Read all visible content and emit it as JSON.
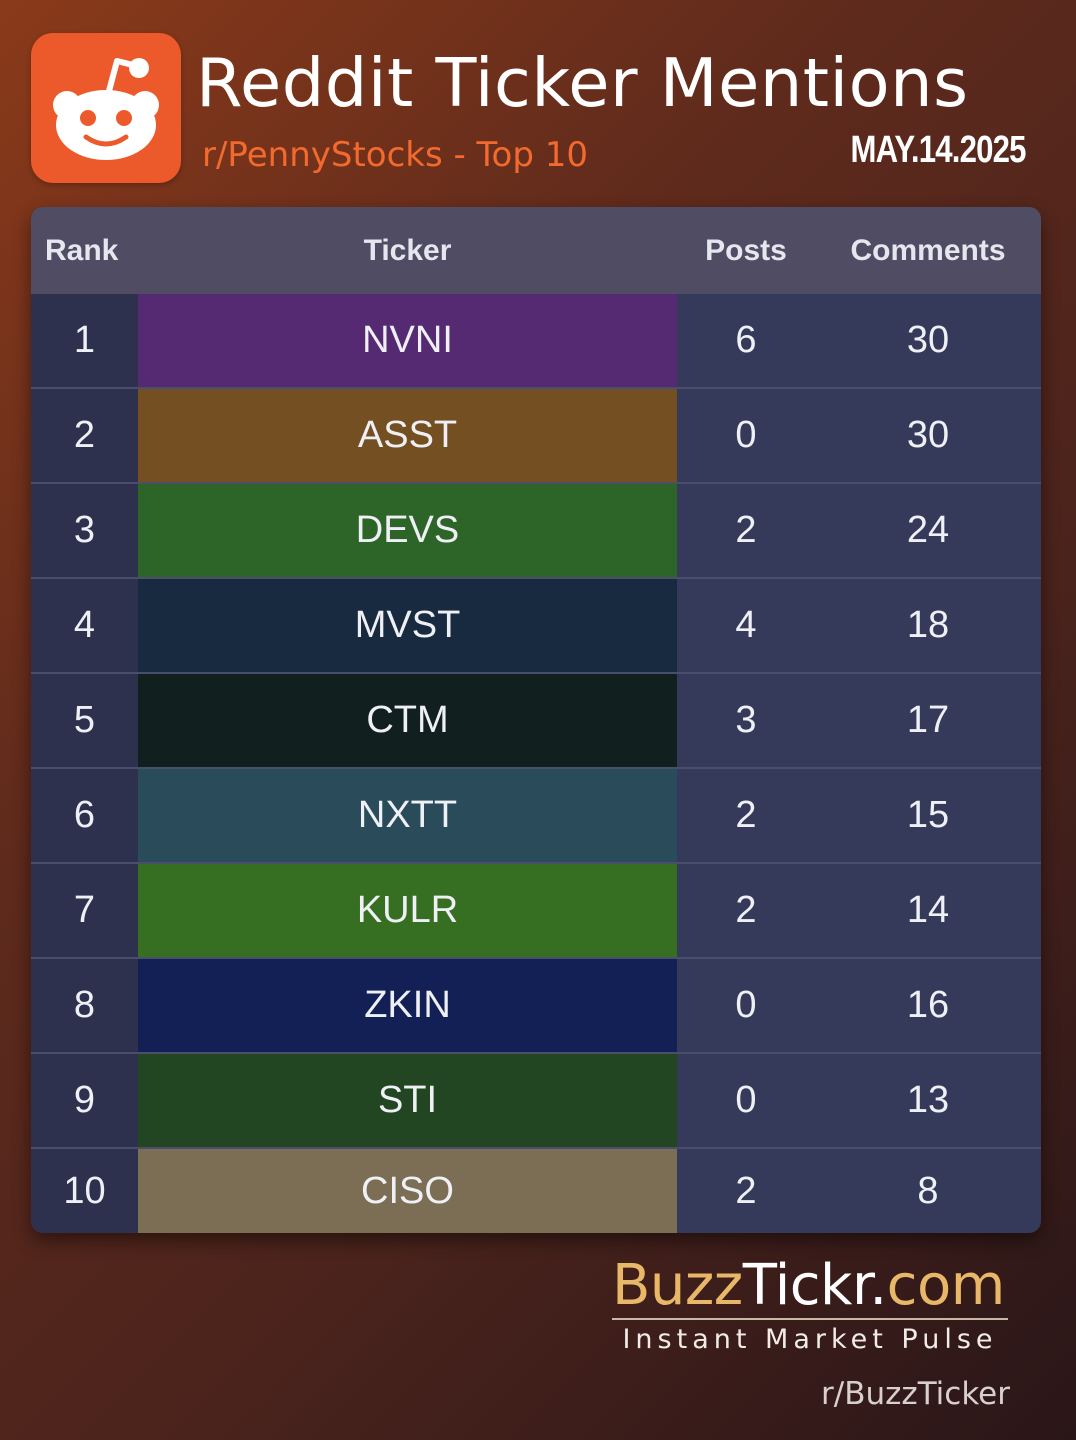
{
  "header": {
    "title": "Reddit Ticker Mentions",
    "subtitle": "r/PennyStocks - Top 10",
    "date": "MAY.14.2025",
    "logo_icon": "reddit-alien-icon"
  },
  "table": {
    "columns": [
      "Rank",
      "Ticker",
      "Posts",
      "Comments"
    ],
    "rows": [
      {
        "rank": "1",
        "ticker": "NVNI",
        "posts": "6",
        "comments": "30",
        "color": "#552a73"
      },
      {
        "rank": "2",
        "ticker": "ASST",
        "posts": "0",
        "comments": "30",
        "color": "#744f22"
      },
      {
        "rank": "3",
        "ticker": "DEVS",
        "posts": "2",
        "comments": "24",
        "color": "#2d6427"
      },
      {
        "rank": "4",
        "ticker": "MVST",
        "posts": "4",
        "comments": "18",
        "color": "#182a40"
      },
      {
        "rank": "5",
        "ticker": "CTM",
        "posts": "3",
        "comments": "17",
        "color": "#111f1f"
      },
      {
        "rank": "6",
        "ticker": "NXTT",
        "posts": "2",
        "comments": "15",
        "color": "#2a4b5a"
      },
      {
        "rank": "7",
        "ticker": "KULR",
        "posts": "2",
        "comments": "14",
        "color": "#376f22"
      },
      {
        "rank": "8",
        "ticker": "ZKIN",
        "posts": "0",
        "comments": "16",
        "color": "#132055"
      },
      {
        "rank": "9",
        "ticker": "STI",
        "posts": "0",
        "comments": "13",
        "color": "#214621"
      },
      {
        "rank": "10",
        "ticker": "CISO",
        "posts": "2",
        "comments": "8",
        "color": "#7b6e54"
      }
    ]
  },
  "footer": {
    "brand_buzz": "Buzz",
    "brand_tickr": "Tickr",
    "brand_dot": ".",
    "brand_com": "com",
    "tagline": "Instant Market Pulse",
    "handle": "r/BuzzTicker"
  },
  "colors": {
    "accent_orange": "#ec5a2c",
    "subtitle_orange": "#f26a2e",
    "brand_gold": "#e8b868",
    "table_bg": "#363a5a",
    "header_bg": "#4f4c64"
  }
}
